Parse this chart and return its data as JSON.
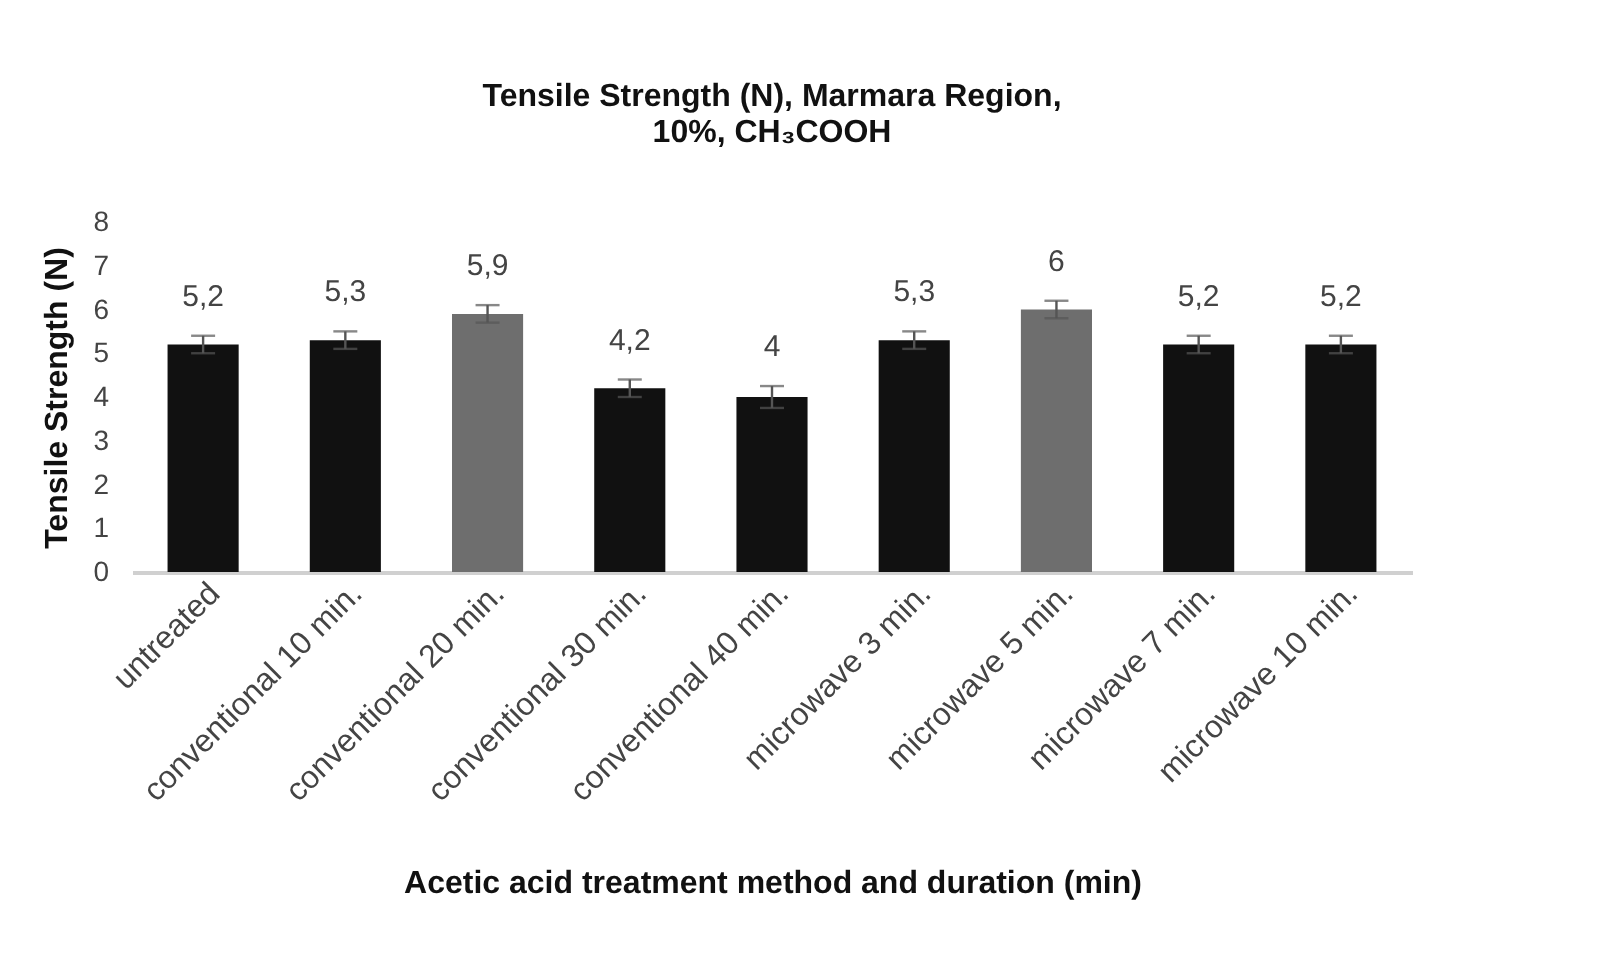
{
  "chart_data": {
    "type": "bar",
    "title": "Tensile Strength (N), Marmara Region,\n10%, CH₃COOH",
    "xlabel": "Acetic acid treatment method and duration (min)",
    "ylabel": "Tensile Strength (N)",
    "categories": [
      "untreated",
      "conventional 10 min.",
      "conventional 20 min.",
      "conventional 30 min.",
      "conventional 40 min.",
      "microwave 3 min.",
      "microwave 5 min.",
      "microwave 7 min.",
      "microwave 10 min."
    ],
    "values": [
      5.2,
      5.3,
      5.9,
      4.2,
      4.0,
      5.3,
      6.0,
      5.2,
      5.2
    ],
    "value_labels": [
      "5,2",
      "5,3",
      "5,9",
      "4,2",
      "4",
      "5,3",
      "6",
      "5,2",
      "5,2"
    ],
    "errors": [
      0.2,
      0.2,
      0.2,
      0.2,
      0.25,
      0.2,
      0.2,
      0.2,
      0.2
    ],
    "colors": [
      "#111111",
      "#111111",
      "#6e6e6e",
      "#111111",
      "#111111",
      "#111111",
      "#6e6e6e",
      "#111111",
      "#111111"
    ],
    "ylim": [
      0,
      8
    ],
    "yticks": [
      0,
      1,
      2,
      3,
      4,
      5,
      6,
      7,
      8
    ],
    "grid": false
  }
}
